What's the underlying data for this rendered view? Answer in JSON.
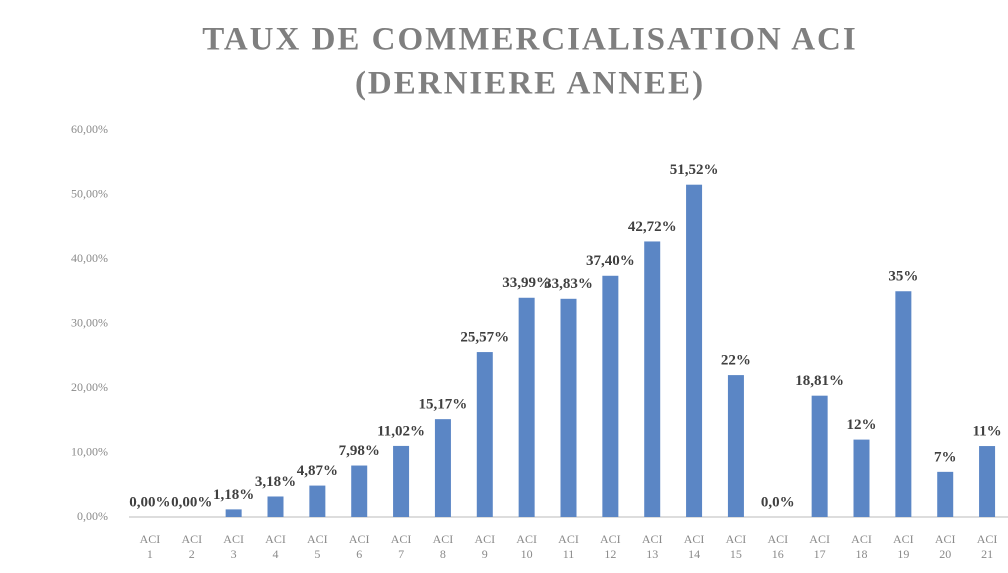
{
  "chart_data": {
    "type": "bar",
    "title": [
      "TAUX DE COMMERCIALISATION ACI",
      "(DERNIERE ANNEE)"
    ],
    "categories": [
      "ACI 1",
      "ACI 2",
      "ACI 3",
      "ACI 4",
      "ACI 5",
      "ACI 6",
      "ACI 7",
      "ACI 8",
      "ACI 9",
      "ACI 10",
      "ACI 11",
      "ACI 12",
      "ACI 13",
      "ACI 14",
      "ACI 15",
      "ACI 16",
      "ACI 17",
      "ACI 18",
      "ACI 19",
      "ACI 20",
      "ACI 21"
    ],
    "values": [
      0,
      0,
      1.18,
      3.18,
      4.87,
      7.98,
      11.02,
      15.17,
      25.57,
      33.99,
      33.83,
      37.4,
      42.72,
      51.52,
      22,
      0,
      18.81,
      12,
      35,
      7,
      11
    ],
    "value_labels": [
      "0,00%",
      "0,00%",
      "1,18%",
      "3,18%",
      "4,87%",
      "7,98%",
      "11,02%",
      "15,17%",
      "25,57%",
      "33,99%",
      "33,83%",
      "37,40%",
      "42,72%",
      "51,52%",
      "22%",
      "0,0%",
      "18,81%",
      "12%",
      "35%",
      "7%",
      "11%"
    ],
    "color": "#5b86c5",
    "ylim": [
      0,
      60
    ],
    "yticks": [
      {
        "value": 0,
        "label": "0,00%"
      },
      {
        "value": 10,
        "label": "10,00%"
      },
      {
        "value": 20,
        "label": "20,00%"
      },
      {
        "value": 30,
        "label": "30,00%"
      },
      {
        "value": 40,
        "label": "40,00%"
      },
      {
        "value": 50,
        "label": "50,00%"
      },
      {
        "value": 60,
        "label": "60,00%"
      }
    ],
    "grid": false
  }
}
